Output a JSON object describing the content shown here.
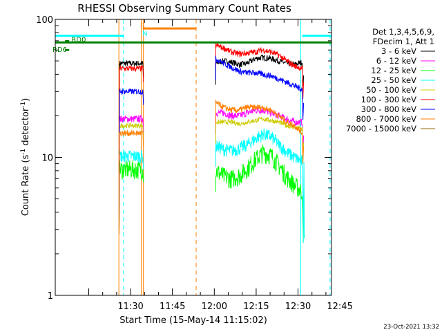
{
  "chart_data": {
    "type": "line",
    "title": "RHESSI Observing Summary Count Rates",
    "xlabel": "Start Time (15-May-14 11:15:02)",
    "ylabel": "Count Rate (s⁻¹ detector⁻¹)",
    "ylabel_parts": [
      "Count Rate (s",
      "-1",
      " detector",
      "-1",
      ")"
    ],
    "yscale": "log",
    "ylim": [
      1,
      100
    ],
    "y_ticks": [
      {
        "value": 1,
        "label": "1"
      },
      {
        "value": 10,
        "label": "10"
      },
      {
        "value": 100,
        "label": "100"
      }
    ],
    "xlim_minutes": [
      -12,
      87
    ],
    "x_ticks": [
      {
        "minute": 15,
        "label": "11:30"
      },
      {
        "minute": 30,
        "label": "11:45"
      },
      {
        "minute": 45,
        "label": "12:00"
      },
      {
        "minute": 60,
        "label": "12:15"
      },
      {
        "minute": 75,
        "label": "12:30"
      },
      {
        "minute": 90,
        "label": "12:45"
      }
    ],
    "legend": {
      "header": [
        "Det 1,3,4,5,6,9,",
        "FDecim 1, Att 1"
      ],
      "placement": "right",
      "entries": [
        {
          "label": "3 - 6 keV",
          "color": "#000000"
        },
        {
          "label": "6 - 12 keV",
          "color": "#ff00ff"
        },
        {
          "label": "12 - 25 keV",
          "color": "#00ff00"
        },
        {
          "label": "25 - 50 keV",
          "color": "#00ffff"
        },
        {
          "label": "50 - 100 keV",
          "color": "#cccc00"
        },
        {
          "label": "100 - 300 keV",
          "color": "#ff0000"
        },
        {
          "label": "300 - 800 keV",
          "color": "#0000ff"
        },
        {
          "label": "800 - 7000 keV",
          "color": "#ff8000"
        },
        {
          "label": "7000 - 15000 keV",
          "color": "#996600"
        }
      ]
    },
    "segments": [
      [
        12.5,
        19.5
      ],
      [
        45.5,
        76.5
      ]
    ],
    "series": [
      {
        "name": "3 - 6 keV",
        "color": "#000000",
        "seg1_level": 48,
        "seg2_levels": [
          48,
          50,
          49,
          47,
          48,
          52,
          53,
          52,
          50,
          48,
          47,
          49
        ]
      },
      {
        "name": "6 - 12 keV",
        "color": "#ff00ff",
        "seg1_level": 19,
        "seg2_levels": [
          21,
          21,
          20,
          20,
          21,
          22,
          22,
          21,
          20,
          19,
          18,
          18
        ]
      },
      {
        "name": "12 - 25 keV",
        "color": "#00ff00",
        "seg1_level": 8.2,
        "seg2_levels": [
          8.0,
          7.3,
          7.0,
          7.4,
          8.3,
          9.6,
          10.8,
          10.4,
          8.8,
          7.2,
          6.3,
          5.6
        ]
      },
      {
        "name": "25 - 50 keV",
        "color": "#00ffff",
        "seg1_level": 10.2,
        "seg2_levels": [
          12.2,
          11.4,
          11.2,
          11.6,
          12.4,
          13.6,
          14.8,
          14.2,
          12.4,
          10.9,
          10.0,
          9.3
        ]
      },
      {
        "name": "50 - 100 keV",
        "color": "#cccc00",
        "seg1_level": 17,
        "seg2_levels": [
          18,
          18,
          18,
          17.5,
          18,
          18.5,
          19,
          18.5,
          18,
          17,
          16.5,
          16
        ]
      },
      {
        "name": "100 - 300 keV",
        "color": "#ff0000",
        "seg1_level": 44,
        "seg2_levels": [
          65,
          62,
          58,
          56,
          57,
          58,
          60,
          58,
          55,
          50,
          46,
          44
        ]
      },
      {
        "name": "300 - 800 keV",
        "color": "#0000ff",
        "seg1_level": 30,
        "seg2_levels": [
          52,
          48,
          45,
          42,
          41,
          41,
          40,
          39,
          37,
          35,
          33,
          31
        ]
      },
      {
        "name": "800 - 7000 keV",
        "color": "#ff8000",
        "seg1_level": 15,
        "seg2_levels": [
          25,
          23,
          22,
          22,
          23,
          23,
          23,
          22,
          20,
          18,
          17,
          15
        ]
      }
    ],
    "flag_lines": [
      {
        "name": "cyan bar",
        "color": "#00ffff",
        "level": 76,
        "spans": [
          [
            -12,
            12.5
          ],
          [
            76.5,
            87
          ]
        ]
      },
      {
        "name": "orange bar",
        "color": "#ff8000",
        "level": 86,
        "spans": [
          [
            19.5,
            38.5
          ]
        ]
      },
      {
        "name": "green bar",
        "color": "#008000",
        "level": 68,
        "spans": [
          [
            -12,
            87
          ]
        ]
      },
      {
        "name": "RD0",
        "color": "#008000",
        "level": 69.5,
        "spans": [
          [
            -8.5,
            -7
          ]
        ]
      },
      {
        "name": "RD6",
        "color": "#008000",
        "level": 60,
        "spans": [
          [
            -8.5,
            -7
          ]
        ]
      }
    ],
    "flag_labels": [
      {
        "text": "RD0",
        "color": "#008000",
        "minute": -6.2,
        "level": 72
      },
      {
        "text": "RD6",
        "color": "#008000",
        "minute": -13.0,
        "level": 61
      },
      {
        "text": "S",
        "color": "#ff8000",
        "minute": 18.5,
        "level": 90
      },
      {
        "text": "N",
        "color": "#00ffff",
        "minute": 19.2,
        "level": 80
      }
    ],
    "vertical_lines": [
      {
        "minute": -12,
        "color": "#00ffff",
        "dashed": false
      },
      {
        "minute": 10.8,
        "color": "#ff8000",
        "dashed": false
      },
      {
        "minute": 12.5,
        "color": "#00ffff",
        "dashed": true
      },
      {
        "minute": 18.8,
        "color": "#ff8000",
        "dashed": false
      },
      {
        "minute": 19.6,
        "color": "#ff8000",
        "dashed": false
      },
      {
        "minute": 38.5,
        "color": "#ff8000",
        "dashed": true
      },
      {
        "minute": 76.0,
        "color": "#00ffff",
        "dashed": false
      },
      {
        "minute": 86.5,
        "color": "#00ffff",
        "dashed": true
      }
    ]
  },
  "footer": {
    "timestamp": "23-Oct-2021 13:32"
  }
}
